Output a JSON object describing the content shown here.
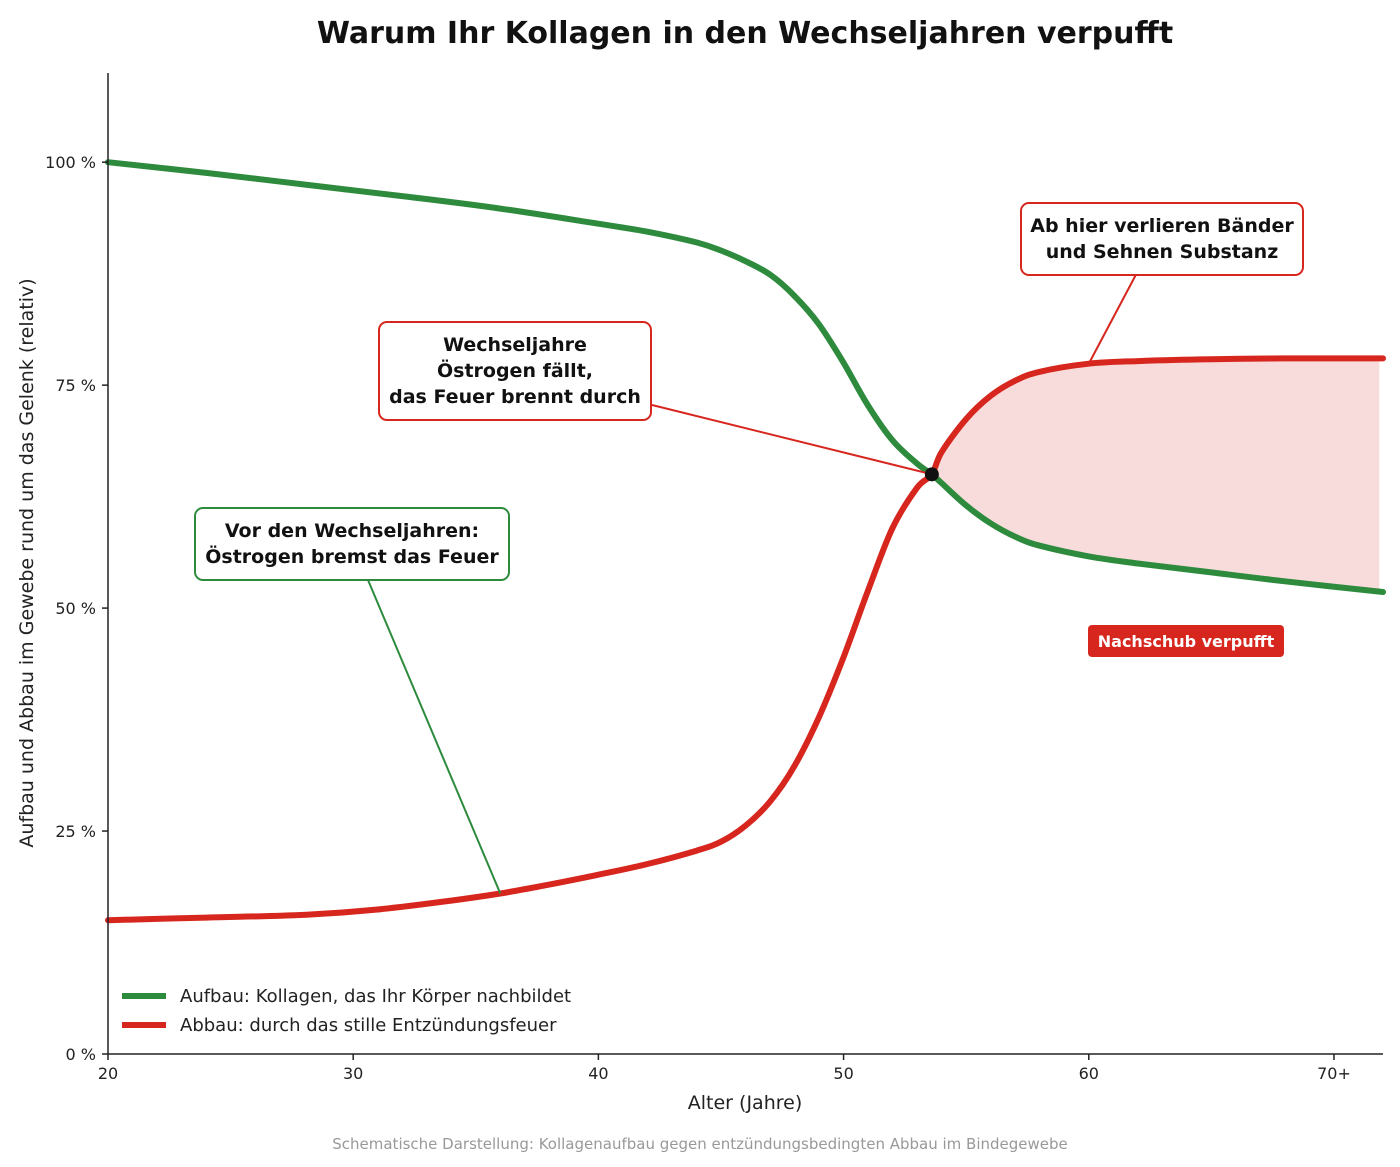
{
  "chart_data": {
    "type": "line",
    "title": "Warum Ihr Kollagen in den Wechseljahren verpufft",
    "xlabel": "Alter (Jahre)",
    "ylabel": "Aufbau und Abbau im Gewebe rund um das Gelenk (relativ)",
    "xlim": [
      20,
      72
    ],
    "ylim": [
      0,
      110
    ],
    "x_ticks": [
      {
        "value": 20,
        "label": "20"
      },
      {
        "value": 30,
        "label": "30"
      },
      {
        "value": 40,
        "label": "40"
      },
      {
        "value": 50,
        "label": "50"
      },
      {
        "value": 60,
        "label": "60"
      },
      {
        "value": 70,
        "label": "70+"
      }
    ],
    "y_ticks": [
      {
        "value": 0,
        "label": "0 %"
      },
      {
        "value": 25,
        "label": "25 %"
      },
      {
        "value": 50,
        "label": "50 %"
      },
      {
        "value": 75,
        "label": "75 %"
      },
      {
        "value": 100,
        "label": "100 %"
      }
    ],
    "grid": false,
    "legend_position": "bottom-left",
    "series": [
      {
        "name": "Aufbau: Kollagen, das Ihr Körper nachbildet",
        "color": "#2e8b3d",
        "points": [
          [
            20,
            100
          ],
          [
            24,
            98.8
          ],
          [
            28,
            97.5
          ],
          [
            32,
            96.2
          ],
          [
            36,
            94.8
          ],
          [
            40,
            93.1
          ],
          [
            42,
            92.2
          ],
          [
            44,
            91
          ],
          [
            45,
            90.1
          ],
          [
            46,
            88.9
          ],
          [
            47,
            87.4
          ],
          [
            48,
            85
          ],
          [
            49,
            81.8
          ],
          [
            50,
            77.5
          ],
          [
            51,
            72.7
          ],
          [
            52,
            68.8
          ],
          [
            53,
            66.2
          ],
          [
            53.6,
            65
          ],
          [
            54,
            64
          ],
          [
            55,
            61.5
          ],
          [
            56,
            59.5
          ],
          [
            57,
            58
          ],
          [
            58,
            57
          ],
          [
            60,
            55.8
          ],
          [
            62,
            55
          ],
          [
            65,
            54
          ],
          [
            68,
            53
          ],
          [
            72,
            51.8
          ]
        ]
      },
      {
        "name": "Abbau: durch das stille Entzündungsfeuer",
        "color": "#d7261e",
        "points": [
          [
            20,
            15
          ],
          [
            24,
            15.3
          ],
          [
            28,
            15.6
          ],
          [
            31,
            16.2
          ],
          [
            34,
            17.2
          ],
          [
            36,
            18
          ],
          [
            38,
            19
          ],
          [
            40,
            20.1
          ],
          [
            42,
            21.3
          ],
          [
            44,
            22.8
          ],
          [
            45,
            23.8
          ],
          [
            46,
            25.6
          ],
          [
            47,
            28.3
          ],
          [
            48,
            32.3
          ],
          [
            49,
            37.8
          ],
          [
            50,
            44.5
          ],
          [
            51,
            52
          ],
          [
            52,
            59
          ],
          [
            53,
            63.5
          ],
          [
            53.6,
            65
          ],
          [
            54,
            67.5
          ],
          [
            55,
            71.2
          ],
          [
            56,
            73.8
          ],
          [
            57,
            75.5
          ],
          [
            58,
            76.5
          ],
          [
            60,
            77.4
          ],
          [
            62,
            77.7
          ],
          [
            65,
            77.9
          ],
          [
            68,
            78
          ],
          [
            72,
            78
          ]
        ]
      }
    ],
    "shaded_region": {
      "between": "Abbau minus Aufbau",
      "x_from": 53.6,
      "x_to": 72,
      "color": "#f8dcdc"
    },
    "intersection_point": {
      "x": 53.6,
      "y": 65
    },
    "annotations": [
      {
        "id": "vor",
        "lines": [
          "Vor den Wechseljahren:",
          "Östrogen bremst das Feuer"
        ],
        "color": "#2e8b3d",
        "points_to": {
          "x": 36,
          "y": 18
        }
      },
      {
        "id": "wechsel",
        "lines": [
          "Wechseljahre",
          "Östrogen fällt,",
          "das Feuer brennt durch"
        ],
        "color": "#d7261e",
        "points_to": {
          "x": 53.6,
          "y": 65
        }
      },
      {
        "id": "ab",
        "lines": [
          "Ab hier verlieren Bänder",
          "und Sehnen Substanz"
        ],
        "color": "#d7261e",
        "points_to": {
          "x": 60,
          "y": 77.4
        }
      }
    ],
    "badge": {
      "text": "Nachschub verpufft",
      "color": "#d7261e"
    },
    "footnote": "Schematische Darstellung: Kollagenaufbau gegen entzündungsbedingten Abbau im Bindegewebe"
  }
}
